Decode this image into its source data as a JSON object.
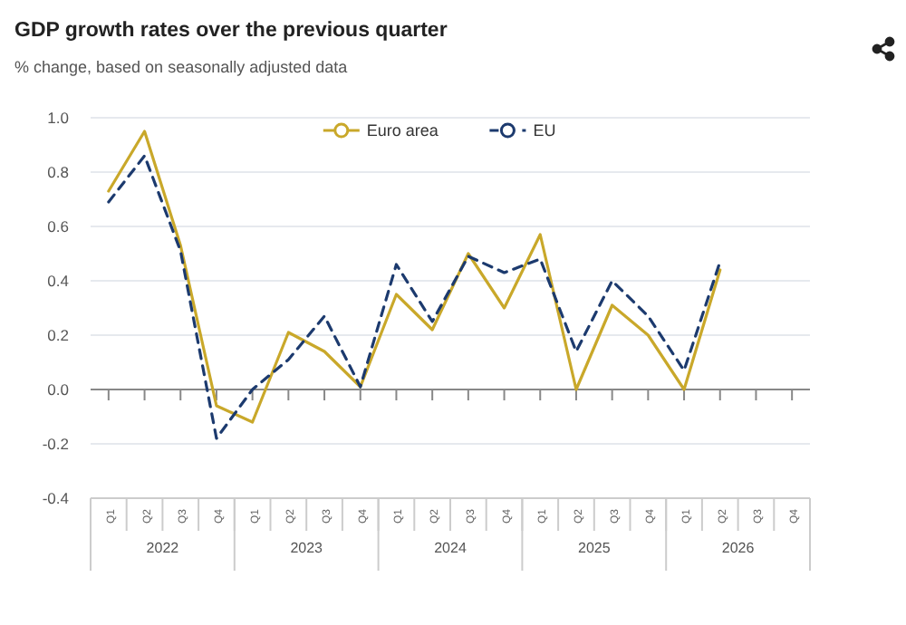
{
  "chart_data": {
    "type": "line",
    "title": "GDP growth rates over the previous quarter",
    "subtitle": "% change, based on seasonally adjusted data",
    "categories": [
      "Q1",
      "Q2",
      "Q3",
      "Q4",
      "Q1",
      "Q2",
      "Q3",
      "Q4",
      "Q1",
      "Q2",
      "Q3",
      "Q4",
      "Q1",
      "Q2",
      "Q3",
      "Q4",
      "Q1",
      "Q2",
      "Q3",
      "Q4"
    ],
    "annotations": [
      "2022",
      "2023",
      "2024",
      "2025",
      "2026"
    ],
    "series": [
      {
        "name": "Euro area",
        "color": "#c9a82a",
        "line_style": "solid",
        "values": [
          0.73,
          0.95,
          0.53,
          -0.06,
          -0.12,
          0.21,
          0.14,
          0.01,
          0.35,
          0.22,
          0.5,
          0.3,
          0.57,
          0,
          0.31,
          0.2,
          0,
          0.44,
          null,
          null
        ]
      },
      {
        "name": "EU",
        "color": "#1c3a6e",
        "line_style": "dashed",
        "values": [
          0.69,
          0.86,
          0.51,
          -0.18,
          0,
          0.11,
          0.27,
          0.01,
          0.46,
          0.25,
          0.49,
          0.43,
          0.48,
          0.14,
          0.4,
          0.27,
          0.07,
          0.47,
          null,
          null
        ]
      }
    ],
    "ylim": [
      -0.4,
      1.0
    ],
    "yticks": [
      {
        "value": -0.4,
        "label": "-0.4"
      },
      {
        "value": -0.2,
        "label": "-0.2"
      },
      {
        "value": 0,
        "label": "0.0"
      },
      {
        "value": 0.2,
        "label": "0.2"
      },
      {
        "value": 0.4,
        "label": "0.4"
      },
      {
        "value": 0.6,
        "label": "0.6"
      },
      {
        "value": 0.8,
        "label": "0.8"
      },
      {
        "value": 1.0,
        "label": "1.0"
      }
    ],
    "grid": "y",
    "legend": "top"
  }
}
